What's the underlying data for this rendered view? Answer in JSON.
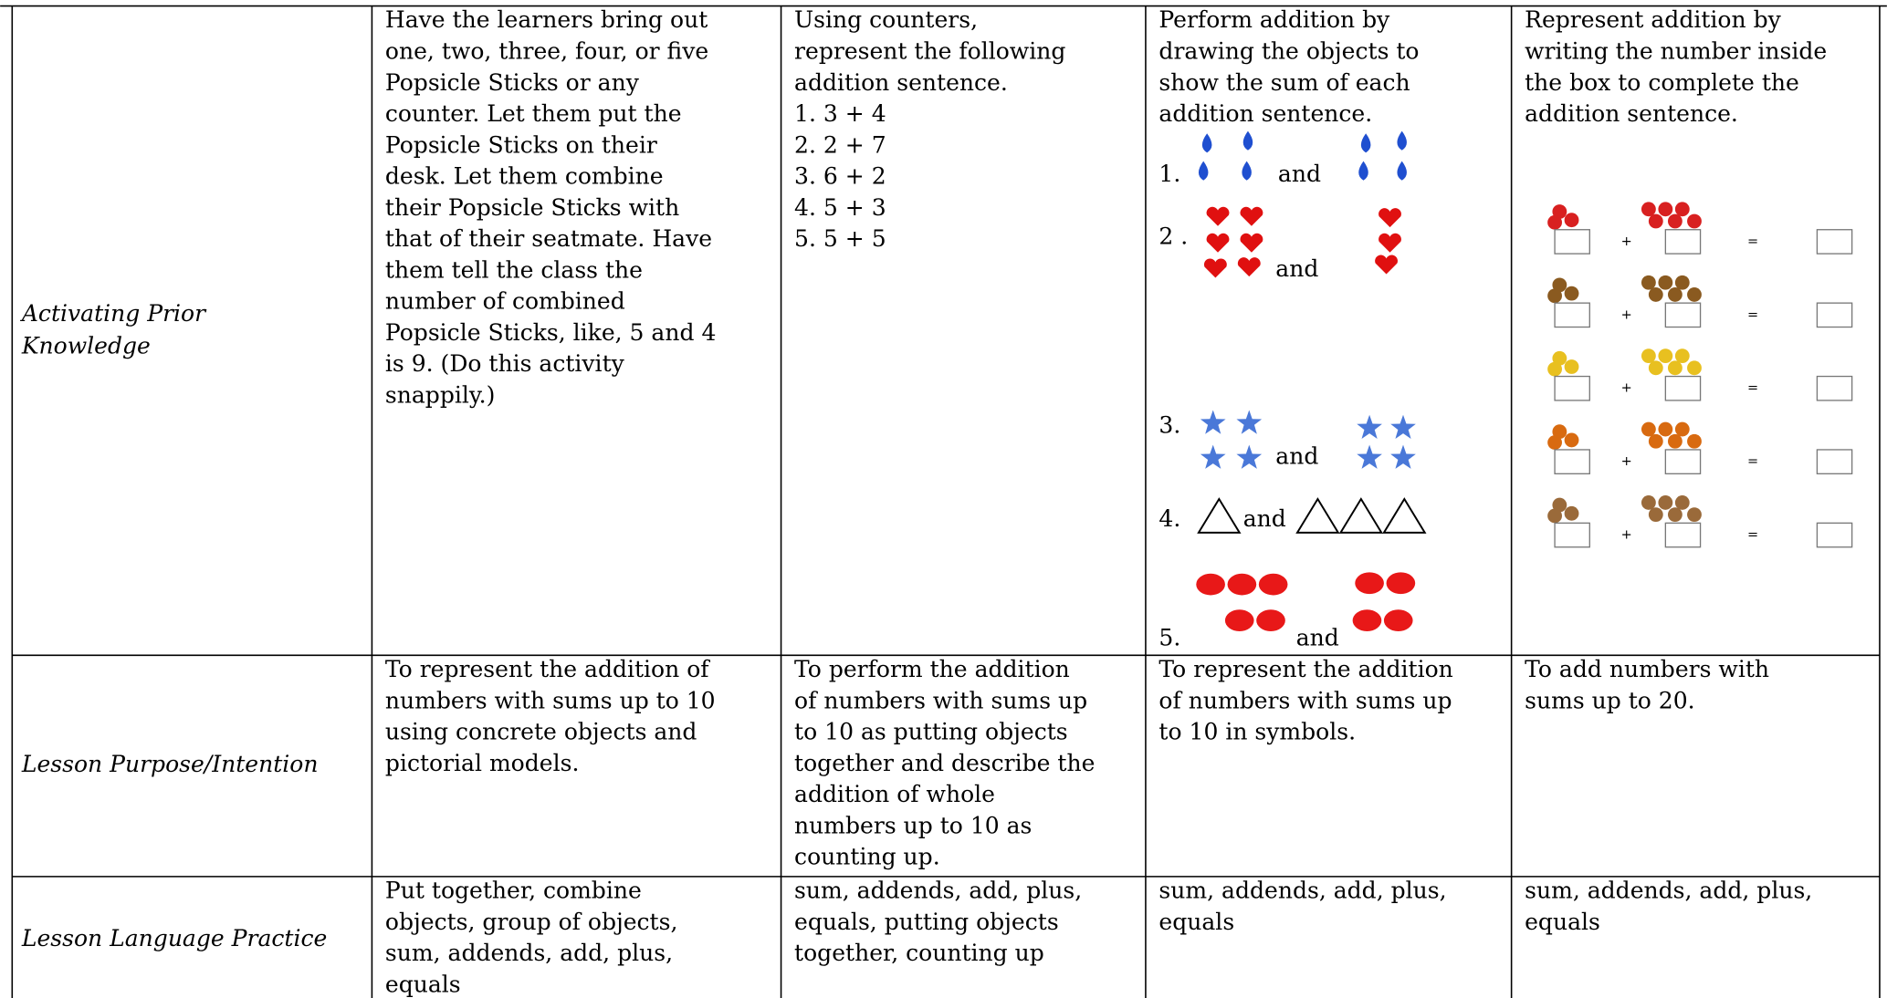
{
  "table": {
    "rows": [
      {
        "label": [
          "Activating Prior",
          "Knowledge"
        ],
        "cells": [
          {
            "lines": [
              "Have the learners bring out",
              "one, two, three, four, or five",
              "Popsicle Sticks or any",
              "counter. Let them put the",
              "Popsicle Sticks on their",
              "desk. Let them combine",
              "their Popsicle Sticks with",
              "that of their seatmate. Have",
              "them tell the class the",
              "number of combined",
              "Popsicle Sticks, like, 5 and 4",
              "is 9. (Do this activity",
              "snappily.)"
            ]
          },
          {
            "lines": [
              "Using counters,",
              "represent the following",
              "addition sentence.",
              "1. 3 + 4",
              "2. 2 + 7",
              "3. 6 + 2",
              "4. 5 + 3",
              "5. 5 + 5"
            ]
          },
          {
            "lines": [
              "Perform addition by",
              "drawing the objects to",
              "show the sum of each",
              "addition sentence."
            ],
            "items": [
              {
                "number": "1.",
                "joiner": "and"
              },
              {
                "number": "2 .",
                "joiner": "and"
              },
              {
                "number": "3.",
                "joiner": "and"
              },
              {
                "number": "4.",
                "joiner": "and"
              },
              {
                "number": "5.",
                "joiner": "and"
              }
            ]
          },
          {
            "lines": [
              "Represent addition by",
              "writing the number inside",
              "the box to complete the",
              "addition sentence."
            ],
            "equations": [
              [
                "+",
                "="
              ],
              [
                "+",
                "="
              ],
              [
                "+",
                "="
              ],
              [
                "+",
                "="
              ],
              [
                "+",
                "="
              ]
            ]
          }
        ]
      },
      {
        "label": [
          "Lesson Purpose/Intention"
        ],
        "cells": [
          {
            "lines": [
              "To represent the addition of",
              "numbers with sums up to 10",
              "using concrete objects and",
              "pictorial models."
            ]
          },
          {
            "lines": [
              "To perform the addition",
              "of numbers with sums up",
              "to 10 as putting objects",
              "together and describe the",
              "addition of whole",
              "numbers up to 10 as",
              "counting up."
            ]
          },
          {
            "lines": [
              "To represent the addition",
              "of numbers with sums up",
              "to 10 in symbols."
            ]
          },
          {
            "lines": [
              "To add numbers with",
              "sums up to 20."
            ]
          }
        ]
      },
      {
        "label": [
          "Lesson Language Practice"
        ],
        "cells": [
          {
            "lines": [
              "Put together, combine",
              "objects, group of objects,",
              "sum, addends, add, plus,",
              "equals"
            ]
          },
          {
            "lines": [
              "sum, addends, add, plus,",
              "equals, putting objects",
              "together, counting up"
            ]
          },
          {
            "lines": [
              "sum, addends, add, plus,",
              "equals"
            ]
          },
          {
            "lines": [
              "sum, addends, add, plus,",
              "equals"
            ]
          }
        ]
      }
    ]
  }
}
